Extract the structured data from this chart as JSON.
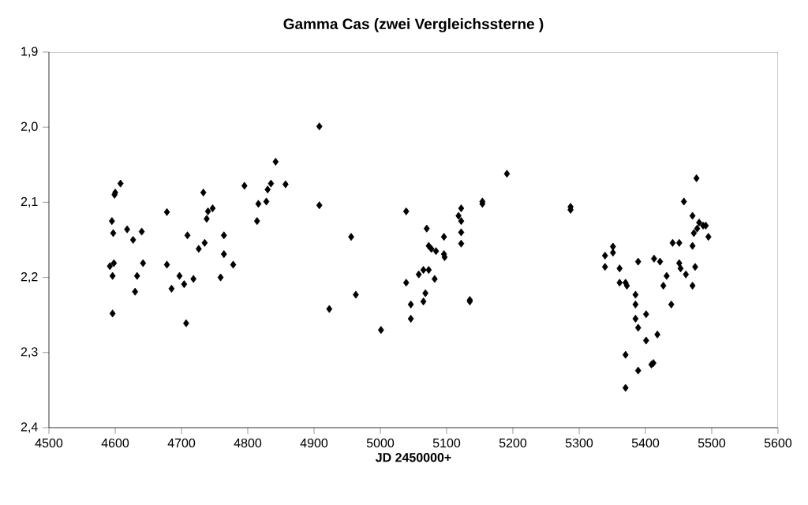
{
  "chart_data": {
    "type": "scatter",
    "title": "Gamma Cas (zwei Vergleichssterne )",
    "xlabel": "JD 2450000+",
    "xlim": [
      4500,
      5600
    ],
    "xticks": [
      4500,
      4600,
      4700,
      4800,
      4900,
      5000,
      5100,
      5200,
      5300,
      5400,
      5500,
      5600
    ],
    "ylim": [
      2.4,
      1.9
    ],
    "yticks": [
      {
        "value": 1.9,
        "label": "1,9"
      },
      {
        "value": 2.0,
        "label": "2,0"
      },
      {
        "value": 2.1,
        "label": "2,1"
      },
      {
        "value": 2.2,
        "label": "2,2"
      },
      {
        "value": 2.3,
        "label": "2,3"
      },
      {
        "value": 2.4,
        "label": "2,4"
      }
    ],
    "marker": "diamond",
    "grid": false,
    "series": [
      {
        "color": "#000000",
        "x": [
          4596,
          4592,
          4598,
          4596,
          4595,
          4597,
          4599,
          4600,
          4608,
          4618,
          4627,
          4630,
          4633,
          4640,
          4642,
          4678,
          4678,
          4685,
          4697,
          4704,
          4707,
          4709,
          4718,
          4726,
          4733,
          4735,
          4738,
          4740,
          4747,
          4759,
          4764,
          4764,
          4778,
          4795,
          4814,
          4816,
          4828,
          4830,
          4835,
          4842,
          4857,
          4908,
          4908,
          4923,
          4956,
          4963,
          5001,
          5039,
          5039,
          5046,
          5046,
          5065,
          5068,
          5070,
          5073,
          5077,
          5084,
          5058,
          5065,
          5073,
          5082,
          5096,
          5096,
          5097,
          5118,
          5122,
          5122,
          5122,
          5122,
          5135,
          5135,
          5154,
          5154,
          5191,
          5287,
          5287,
          5339,
          5339,
          5351,
          5351,
          5361,
          5361,
          5370,
          5372,
          5370,
          5370,
          5385,
          5385,
          5385,
          5389,
          5389,
          5389,
          5401,
          5401,
          5409,
          5412,
          5413,
          5418,
          5422,
          5427,
          5432,
          5439,
          5441,
          5451,
          5451,
          5453,
          5461,
          5458,
          5471,
          5471,
          5471,
          5475,
          5473,
          5477,
          5478,
          5481,
          5487,
          5491,
          5495
        ],
        "values": [
          2.248,
          2.185,
          2.181,
          2.198,
          2.125,
          2.141,
          2.09,
          2.087,
          2.075,
          2.136,
          2.15,
          2.219,
          2.198,
          2.139,
          2.181,
          2.113,
          2.183,
          2.215,
          2.198,
          2.209,
          2.261,
          2.144,
          2.202,
          2.162,
          2.087,
          2.154,
          2.122,
          2.112,
          2.108,
          2.2,
          2.144,
          2.169,
          2.183,
          2.078,
          2.125,
          2.102,
          2.099,
          2.083,
          2.075,
          2.046,
          2.076,
          1.999,
          2.104,
          2.242,
          2.146,
          2.223,
          2.27,
          2.112,
          2.207,
          2.236,
          2.255,
          2.232,
          2.221,
          2.135,
          2.158,
          2.162,
          2.165,
          2.196,
          2.19,
          2.19,
          2.202,
          2.146,
          2.169,
          2.173,
          2.118,
          2.108,
          2.125,
          2.14,
          2.155,
          2.23,
          2.232,
          2.099,
          2.102,
          2.062,
          2.106,
          2.11,
          2.171,
          2.186,
          2.159,
          2.167,
          2.188,
          2.207,
          2.207,
          2.211,
          2.303,
          2.347,
          2.223,
          2.236,
          2.255,
          2.267,
          2.324,
          2.179,
          2.249,
          2.284,
          2.316,
          2.314,
          2.175,
          2.276,
          2.179,
          2.211,
          2.198,
          2.236,
          2.154,
          2.154,
          2.181,
          2.188,
          2.196,
          2.099,
          2.118,
          2.158,
          2.211,
          2.186,
          2.141,
          2.068,
          2.135,
          2.127,
          2.131,
          2.131,
          2.146
        ]
      }
    ]
  }
}
